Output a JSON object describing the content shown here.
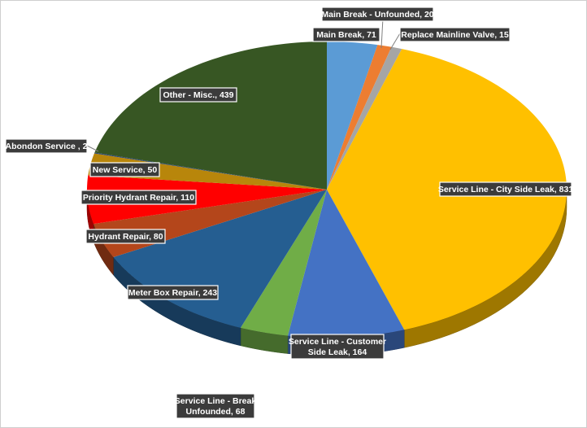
{
  "chart_data": {
    "type": "pie",
    "title": "",
    "slices": [
      {
        "label": "Main Break, 71",
        "name": "Main Break",
        "value": 71,
        "color": "#5b9bd5"
      },
      {
        "label": "Main Break - Unfounded, 20",
        "name": "Main Break - Unfounded",
        "value": 20,
        "color": "#ed7d31"
      },
      {
        "label": "Replace Mainline Valve, 15",
        "name": "Replace Mainline Valve",
        "value": 15,
        "color": "#a5a5a5"
      },
      {
        "label": "Service Line - City Side Leak, 831",
        "name": "Service Line - City Side Leak",
        "value": 831,
        "color": "#ffc000"
      },
      {
        "label": "Service Line - Customer Side Leak, 164",
        "name": "Service Line - Customer Side Leak",
        "value": 164,
        "color": "#4472c4"
      },
      {
        "label": "Service Line - Break Unfounded, 68",
        "name": "Service Line - Break Unfounded",
        "value": 68,
        "color": "#70ad47"
      },
      {
        "label": "Meter Box Repair, 243",
        "name": "Meter Box Repair",
        "value": 243,
        "color": "#255e91"
      },
      {
        "label": "Hydrant Repair, 80",
        "name": "Hydrant Repair",
        "value": 80,
        "color": "#b4461b"
      },
      {
        "label": "Priority Hydrant Repair, 110",
        "name": "Priority Hydrant Repair",
        "value": 110,
        "color": "#ff0000"
      },
      {
        "label": "New Service, 50",
        "name": "New Service",
        "value": 50,
        "color": "#b8860b"
      },
      {
        "label": "Abondon Service , 2",
        "name": "Abondon Service",
        "value": 2,
        "color": "#264478"
      },
      {
        "label": "Other - Misc., 439",
        "name": "Other - Misc.",
        "value": 439,
        "color": "#375623"
      }
    ]
  }
}
